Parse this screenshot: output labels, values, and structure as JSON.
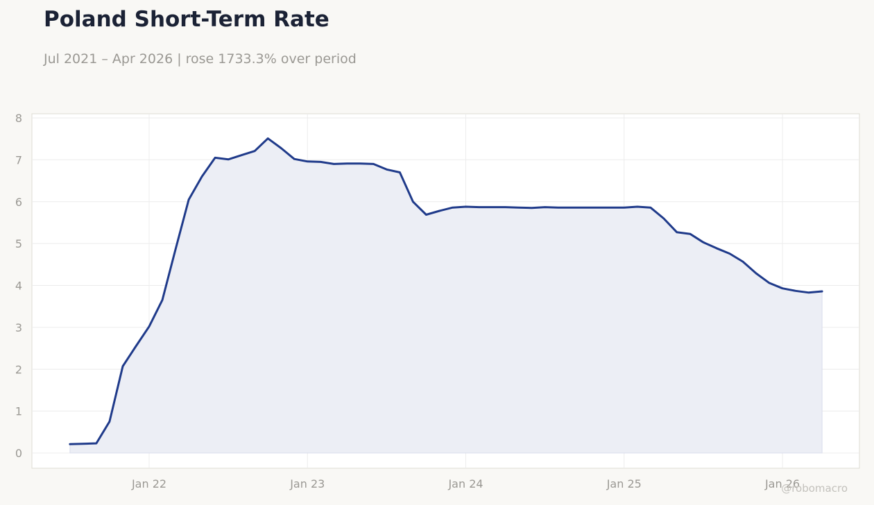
{
  "title": "Poland Short-Term Rate",
  "subtitle": "Jul 2021 – Apr 2026 | rose 1733.3% over period",
  "watermark": "@robomacro",
  "colors": {
    "line": "#1f3a8a",
    "fill": "#eceef5",
    "grid": "#ececec",
    "axis_text": "#9a9893",
    "background": "#f9f8f5",
    "plot_background": "#ffffff"
  },
  "chart_data": {
    "type": "area",
    "title": "Poland Short-Term Rate",
    "subtitle": "Jul 2021 – Apr 2026 | rose 1733.3% over period",
    "xlabel": "",
    "ylabel": "",
    "ylim": [
      0,
      8
    ],
    "yticks": [
      0,
      1,
      2,
      3,
      4,
      5,
      6,
      7,
      8
    ],
    "xticks": [
      {
        "date": "2022-01",
        "label": "Jan 22"
      },
      {
        "date": "2023-01",
        "label": "Jan 23"
      },
      {
        "date": "2024-01",
        "label": "Jan 24"
      },
      {
        "date": "2025-01",
        "label": "Jan 25"
      },
      {
        "date": "2026-01",
        "label": "Jan 26"
      }
    ],
    "grid": true,
    "legend": "none",
    "series": [
      {
        "x": [
          "2021-07",
          "2021-08",
          "2021-09",
          "2021-10",
          "2021-11",
          "2021-12",
          "2022-01",
          "2022-02",
          "2022-03",
          "2022-04",
          "2022-05",
          "2022-06",
          "2022-07",
          "2022-08",
          "2022-09",
          "2022-10",
          "2022-11",
          "2022-12",
          "2023-01",
          "2023-02",
          "2023-03",
          "2023-04",
          "2023-05",
          "2023-06",
          "2023-07",
          "2023-08",
          "2023-09",
          "2023-10",
          "2023-11",
          "2023-12",
          "2024-01",
          "2024-02",
          "2024-03",
          "2024-04",
          "2024-05",
          "2024-06",
          "2024-07",
          "2024-08",
          "2024-09",
          "2024-10",
          "2024-11",
          "2024-12",
          "2025-01",
          "2025-02",
          "2025-03",
          "2025-04",
          "2025-05",
          "2025-06",
          "2025-07",
          "2025-08",
          "2025-09",
          "2025-10",
          "2025-11",
          "2025-12",
          "2026-01",
          "2026-02",
          "2026-03",
          "2026-04"
        ],
        "values": [
          0.21,
          0.22,
          0.23,
          0.75,
          2.07,
          2.55,
          3.02,
          3.65,
          4.86,
          6.05,
          6.6,
          7.05,
          7.01,
          7.11,
          7.21,
          7.51,
          7.28,
          7.02,
          6.96,
          6.95,
          6.9,
          6.91,
          6.91,
          6.9,
          6.77,
          6.7,
          6.0,
          5.69,
          5.78,
          5.86,
          5.88,
          5.87,
          5.87,
          5.87,
          5.86,
          5.85,
          5.87,
          5.86,
          5.86,
          5.86,
          5.86,
          5.86,
          5.86,
          5.88,
          5.86,
          5.6,
          5.27,
          5.23,
          5.03,
          4.89,
          4.76,
          4.57,
          4.29,
          4.06,
          3.93,
          3.87,
          3.83,
          3.86
        ]
      }
    ]
  }
}
